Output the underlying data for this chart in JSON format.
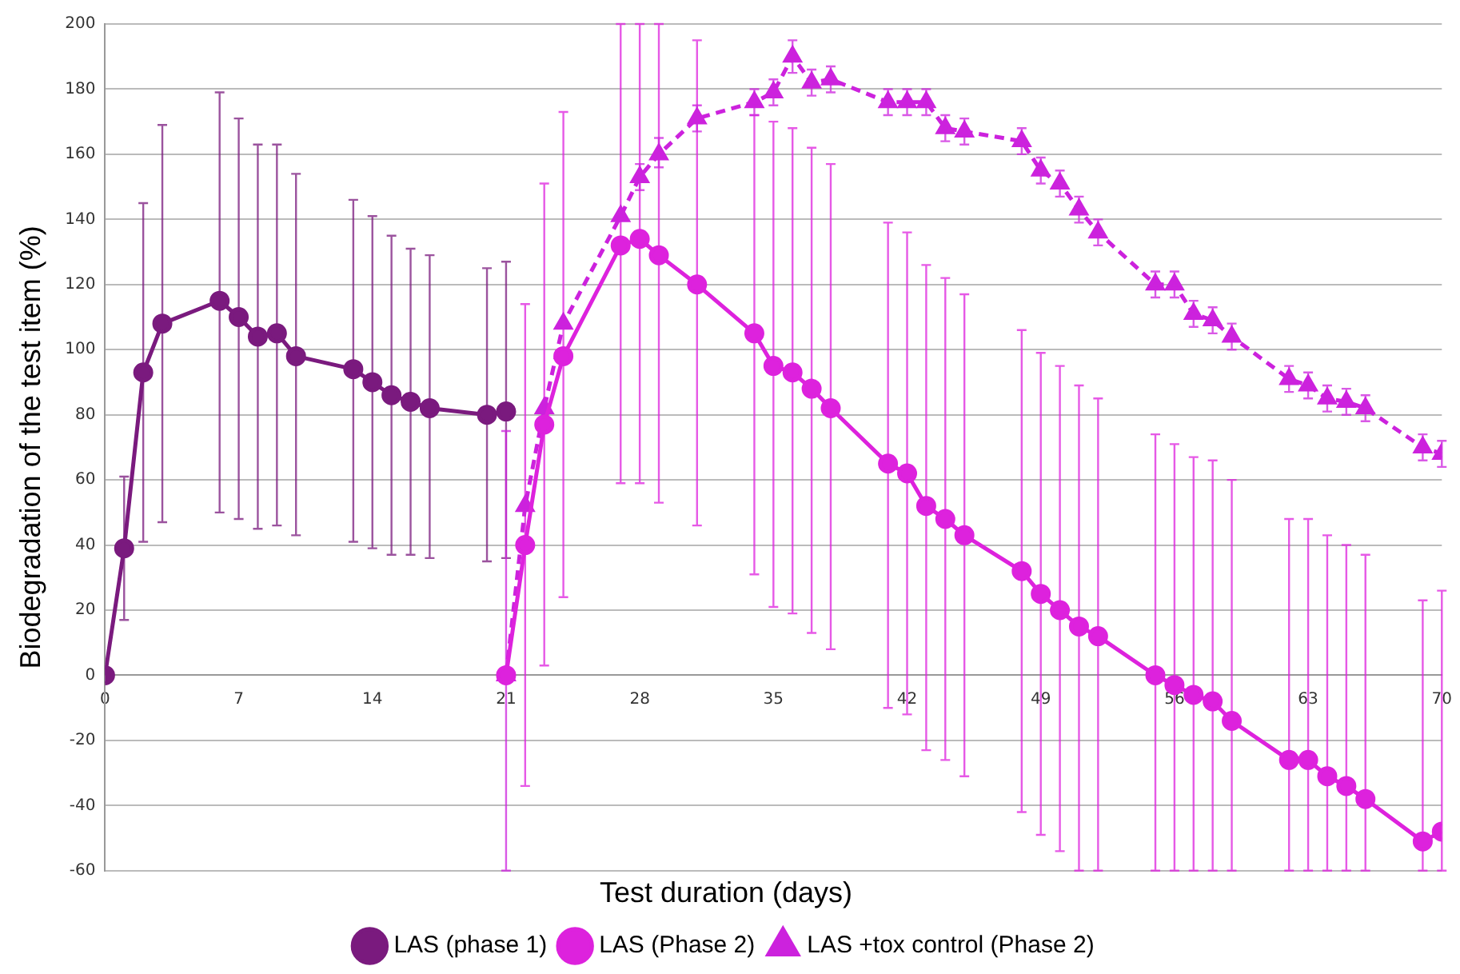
{
  "chart_data": {
    "type": "line",
    "xlabel": "Test duration (days)",
    "ylabel": "Biodegradation of the test item (%)",
    "xlim": [
      0,
      70
    ],
    "xticks": [
      0,
      7,
      14,
      21,
      28,
      35,
      42,
      49,
      56,
      63,
      70
    ],
    "ylim": [
      -60,
      200
    ],
    "yticks": [
      -60,
      -40,
      -20,
      0,
      20,
      40,
      60,
      80,
      100,
      120,
      140,
      160,
      180,
      200
    ],
    "grid": "y",
    "legend": "bottom",
    "series": [
      {
        "name": "LAS (phase 1)",
        "color": "#7a1a7e",
        "marker": "circle",
        "line_style": "solid",
        "x": [
          0,
          1,
          2,
          3,
          6,
          7,
          8,
          9,
          10,
          13,
          14,
          15,
          16,
          17,
          20,
          21
        ],
        "values": [
          0,
          39,
          93,
          108,
          115,
          110,
          104,
          105,
          98,
          94,
          90,
          86,
          84,
          82,
          80,
          81
        ],
        "errors": [
          null,
          [
            17,
            61
          ],
          [
            41,
            145
          ],
          [
            47,
            169
          ],
          [
            50,
            179
          ],
          [
            48,
            171
          ],
          [
            45,
            163
          ],
          [
            46,
            163
          ],
          [
            43,
            154
          ],
          [
            41,
            146
          ],
          [
            39,
            141
          ],
          [
            37,
            135
          ],
          [
            37,
            131
          ],
          [
            36,
            129
          ],
          [
            35,
            125
          ],
          [
            36,
            127
          ]
        ]
      },
      {
        "name": "LAS (Phase 2)",
        "color": "#dd22dd",
        "marker": "circle",
        "line_style": "solid",
        "x": [
          21,
          22,
          23,
          24,
          27,
          28,
          29,
          31,
          34,
          35,
          36,
          37,
          38,
          41,
          42,
          43,
          44,
          45,
          48,
          49,
          50,
          51,
          52,
          55,
          56,
          57,
          58,
          59,
          62,
          63,
          64,
          65,
          66,
          69,
          70
        ],
        "values": [
          0,
          40,
          77,
          98,
          132,
          134,
          129,
          120,
          105,
          95,
          93,
          88,
          82,
          65,
          62,
          52,
          48,
          43,
          32,
          25,
          20,
          15,
          12,
          0,
          -3,
          -6,
          -8,
          -14,
          -26,
          -26,
          -31,
          -34,
          -38,
          -51,
          -48
        ],
        "errors": [
          null,
          [
            -34,
            114
          ],
          [
            3,
            151
          ],
          [
            24,
            173
          ],
          [
            59,
            200
          ],
          [
            59,
            200
          ],
          [
            53,
            200
          ],
          [
            46,
            195
          ],
          [
            31,
            172
          ],
          [
            21,
            170
          ],
          [
            19,
            168
          ],
          [
            13,
            162
          ],
          [
            8,
            157
          ],
          [
            -10,
            139
          ],
          [
            -12,
            136
          ],
          [
            -23,
            126
          ],
          [
            -26,
            122
          ],
          [
            -31,
            117
          ],
          [
            -42,
            106
          ],
          [
            -49,
            99
          ],
          [
            -54,
            95
          ],
          [
            -60,
            89
          ],
          [
            -60,
            85
          ],
          [
            -60,
            74
          ],
          [
            -60,
            71
          ],
          [
            -60,
            67
          ],
          [
            -60,
            66
          ],
          [
            -60,
            60
          ],
          [
            -60,
            48
          ],
          [
            -60,
            48
          ],
          [
            -60,
            43
          ],
          [
            -60,
            40
          ],
          [
            -60,
            37
          ],
          [
            -60,
            23
          ],
          [
            -60,
            26
          ]
        ]
      },
      {
        "name": "LAS +tox control (Phase 2)",
        "color": "#cc22dd",
        "marker": "triangle",
        "line_style": "dashed",
        "x": [
          21,
          22,
          23,
          24,
          27,
          28,
          29,
          31,
          34,
          35,
          36,
          37,
          38,
          41,
          42,
          43,
          44,
          45,
          48,
          49,
          50,
          51,
          52,
          55,
          56,
          57,
          58,
          59,
          62,
          63,
          64,
          65,
          66,
          69,
          70
        ],
        "values": [
          0,
          52,
          82,
          108,
          141,
          153,
          160,
          171,
          176,
          179,
          190,
          182,
          183,
          176,
          176,
          176,
          168,
          167,
          164,
          155,
          151,
          143,
          136,
          120,
          120,
          111,
          109,
          104,
          91,
          89,
          85,
          84,
          82,
          70,
          68
        ],
        "errors": [
          [
            -60,
            75
          ],
          null,
          null,
          null,
          null,
          [
            149,
            157
          ],
          [
            156,
            165
          ],
          [
            167,
            175
          ],
          [
            172,
            180
          ],
          [
            175,
            183
          ],
          [
            185,
            195
          ],
          [
            178,
            186
          ],
          [
            179,
            187
          ],
          [
            172,
            180
          ],
          [
            172,
            180
          ],
          [
            172,
            180
          ],
          [
            164,
            172
          ],
          [
            163,
            171
          ],
          [
            160,
            168
          ],
          [
            151,
            159
          ],
          [
            147,
            155
          ],
          [
            139,
            147
          ],
          [
            132,
            140
          ],
          [
            116,
            124
          ],
          [
            116,
            124
          ],
          [
            107,
            115
          ],
          [
            105,
            113
          ],
          [
            100,
            108
          ],
          [
            87,
            95
          ],
          [
            85,
            93
          ],
          [
            81,
            89
          ],
          [
            80,
            88
          ],
          [
            78,
            86
          ],
          [
            66,
            74
          ],
          [
            64,
            72
          ]
        ]
      }
    ]
  }
}
